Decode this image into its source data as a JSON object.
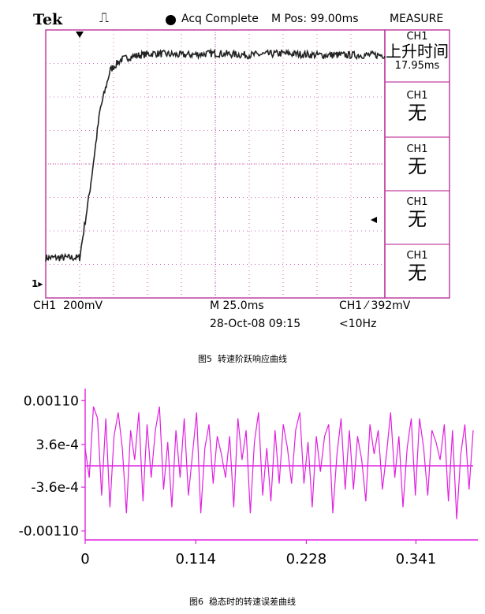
{
  "figure5": {
    "caption": "图5  转速阶跃响应曲线",
    "brand": "Tek",
    "trigger_glyph": "⎍",
    "status": "Acq Complete",
    "mpos": "M Pos: 99.00ms",
    "measure_title": "MEASURE",
    "measure_slots": [
      {
        "channel": "CH1",
        "label": "上升时间",
        "value": "17.95ms"
      },
      {
        "channel": "CH1",
        "label": "无",
        "value": ""
      },
      {
        "channel": "CH1",
        "label": "无",
        "value": ""
      },
      {
        "channel": "CH1",
        "label": "无",
        "value": ""
      },
      {
        "channel": "CH1",
        "label": "无",
        "value": ""
      }
    ],
    "ch_marker": "1▸",
    "bottom": {
      "ch1_scale": "CH1  200mV",
      "timebase": "M 25.0ms",
      "date": "28-Oct-08 09:15",
      "trigger": "CH1 ⁄ 392mV",
      "freq": "<10Hz"
    },
    "trace_color": "#222222",
    "grid_color": "#c040a0"
  },
  "figure6": {
    "caption": "图6  稳态时的转速误差曲线",
    "line_color": "#e020e0"
  },
  "chart_data": [
    {
      "type": "line",
      "title": "",
      "xlabel": "",
      "ylabel": "",
      "x_divisions": 10,
      "y_divisions": 8,
      "grid": true,
      "series": [
        {
          "x_div": [
            0,
            0.4,
            0.8,
            1.0,
            1.3,
            1.6,
            1.9,
            2.2,
            2.5,
            2.8,
            3.2,
            4.0,
            5.0,
            6.0,
            7.0,
            8.0,
            9.0,
            10.0
          ],
          "y_div": [
            1.2,
            1.2,
            1.2,
            1.2,
            3.2,
            5.6,
            6.8,
            7.1,
            7.2,
            7.25,
            7.3,
            7.25,
            7.3,
            7.25,
            7.3,
            7.25,
            7.25,
            7.25
          ]
        }
      ]
    },
    {
      "type": "line",
      "title": "",
      "xlabel": "",
      "ylabel": "",
      "y_ticks": [
        "0.00110",
        "3.6e-4",
        "-3.6e-4",
        "-0.00110"
      ],
      "y_tick_values": [
        0.0011,
        0.00036,
        -0.00036,
        -0.0011
      ],
      "x_ticks": [
        "0",
        "0.114",
        "0.228",
        "0.341"
      ],
      "x_tick_values": [
        0,
        0.114,
        0.228,
        0.341
      ],
      "xlim": [
        0,
        0.4
      ],
      "ylim": [
        -0.00125,
        0.00125
      ],
      "reference_line": 0,
      "grid": false,
      "series": [
        {
          "values": [
            0.0003,
            -0.0002,
            0.001,
            0.0008,
            -0.0005,
            0.0008,
            -0.0007,
            0.0005,
            0.0009,
            0.0003,
            -0.0008,
            0.0006,
            0.0001,
            0.0009,
            -0.0006,
            0.0007,
            -0.0002,
            0.0006,
            0.001,
            -0.0004,
            0.0004,
            -0.0007,
            0.0006,
            -0.0002,
            0.0008,
            -0.0005,
            0.0002,
            0.0009,
            -0.0008,
            0.0003,
            0.0007,
            -0.0003,
            0.0005,
            0.0002,
            -0.0002,
            0.0005,
            -0.0007,
            0.0008,
            0.0001,
            0.0006,
            -0.0008,
            0.0004,
            0.0009,
            -0.0005,
            0.0003,
            -0.0006,
            0.0006,
            -0.0003,
            0.0007,
            0.0003,
            -0.0003,
            0.0006,
            0.0009,
            -0.0003,
            0.0004,
            -0.0007,
            0.0005,
            -0.0001,
            0.0005,
            0.0007,
            -0.0008,
            0.0002,
            0.0008,
            -0.0004,
            0.0006,
            -0.0004,
            0.0005,
            0.0001,
            -0.0006,
            0.0007,
            0.0002,
            0.0006,
            -0.0004,
            0.0002,
            0.0009,
            -0.0002,
            0.0005,
            -0.0007,
            0.0003,
            0.0008,
            -0.0005,
            0.0008,
            0.0003,
            -0.0005,
            0.0006,
            0.0004,
            0.0001,
            0.0007,
            -0.0006,
            0.0006,
            -0.0009,
            0.0002,
            0.0007,
            -0.0004,
            0.0006
          ]
        }
      ]
    }
  ]
}
